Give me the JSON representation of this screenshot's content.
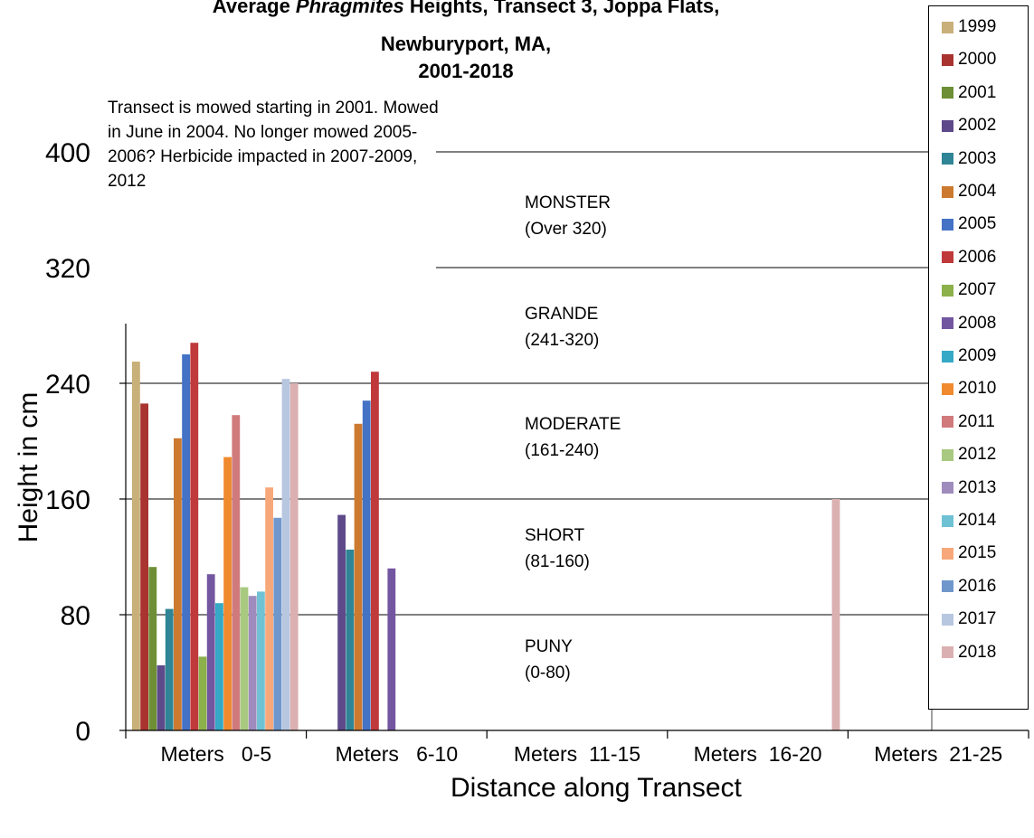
{
  "chart_data": {
    "type": "bar",
    "title": {
      "line1_prefix": "Average ",
      "line1_italic": "Phragmites",
      "line1_suffix": " Heights, Transect 3, Joppa Flats,",
      "line2": "Newburyport, MA,",
      "line3": "2001-2018"
    },
    "xlabel": "Distance along Transect",
    "ylabel": "Height in cm",
    "ylim": [
      0,
      400
    ],
    "yticks": [
      "0",
      "80",
      "160",
      "240",
      "320",
      "400"
    ],
    "categories": [
      "Meters   0-5",
      "Meters   6-10",
      "Meters  11-15",
      "Meters  16-20",
      "Meters  21-25"
    ],
    "annotation": "Transect  is mowed starting in 2001.  Mowed in June in 2004. No longer mowed 2005-2006?  Herbicide impacted in 2007-2009, 2012",
    "zones": [
      {
        "name": "MONSTER",
        "range": "(Over 320)"
      },
      {
        "name": "GRANDE",
        "range": "(241-320)"
      },
      {
        "name": "MODERATE",
        "range": "(161-240)"
      },
      {
        "name": "SHORT",
        "range": "(81-160)"
      },
      {
        "name": "PUNY",
        "range": "(0-80)"
      }
    ],
    "zone_lines": [
      80,
      160,
      240,
      320,
      400
    ],
    "grid": "horizontal",
    "legend_position": "right",
    "series": [
      {
        "name": "1999",
        "color": "#c9b07a",
        "values": [
          255,
          null,
          null,
          null,
          null
        ]
      },
      {
        "name": "2000",
        "color": "#a8332f",
        "values": [
          226,
          null,
          null,
          null,
          null
        ]
      },
      {
        "name": "2001",
        "color": "#6e8f35",
        "values": [
          113,
          null,
          null,
          null,
          null
        ]
      },
      {
        "name": "2002",
        "color": "#5e4a8a",
        "values": [
          45,
          149,
          null,
          null,
          null
        ]
      },
      {
        "name": "2003",
        "color": "#2f8595",
        "values": [
          84,
          125,
          null,
          null,
          null
        ]
      },
      {
        "name": "2004",
        "color": "#cc7a30",
        "values": [
          202,
          212,
          null,
          null,
          null
        ]
      },
      {
        "name": "2005",
        "color": "#4472c4",
        "values": [
          260,
          228,
          null,
          null,
          null
        ]
      },
      {
        "name": "2006",
        "color": "#c0393b",
        "values": [
          268,
          248,
          null,
          null,
          null
        ]
      },
      {
        "name": "2007",
        "color": "#8cb04a",
        "values": [
          51,
          null,
          null,
          null,
          null
        ]
      },
      {
        "name": "2008",
        "color": "#7356a0",
        "values": [
          108,
          112,
          null,
          null,
          null
        ]
      },
      {
        "name": "2009",
        "color": "#35a9c5",
        "values": [
          88,
          null,
          null,
          null,
          null
        ]
      },
      {
        "name": "2010",
        "color": "#f08a2e",
        "values": [
          189,
          null,
          null,
          null,
          null
        ]
      },
      {
        "name": "2011",
        "color": "#d07a7c",
        "values": [
          218,
          null,
          null,
          null,
          null
        ]
      },
      {
        "name": "2012",
        "color": "#a8c980",
        "values": [
          99,
          null,
          null,
          null,
          null
        ]
      },
      {
        "name": "2013",
        "color": "#9f8cbd",
        "values": [
          93,
          null,
          null,
          null,
          null
        ]
      },
      {
        "name": "2014",
        "color": "#6fc2d4",
        "values": [
          96,
          null,
          null,
          null,
          null
        ]
      },
      {
        "name": "2015",
        "color": "#f7a87a",
        "values": [
          168,
          null,
          null,
          null,
          null
        ]
      },
      {
        "name": "2016",
        "color": "#6f97cc",
        "values": [
          147,
          null,
          null,
          null,
          null
        ]
      },
      {
        "name": "2017",
        "color": "#b8c7e0",
        "values": [
          243,
          null,
          null,
          null,
          null
        ]
      },
      {
        "name": "2018",
        "color": "#dbb0b1",
        "values": [
          240,
          null,
          null,
          160,
          null
        ]
      }
    ]
  }
}
